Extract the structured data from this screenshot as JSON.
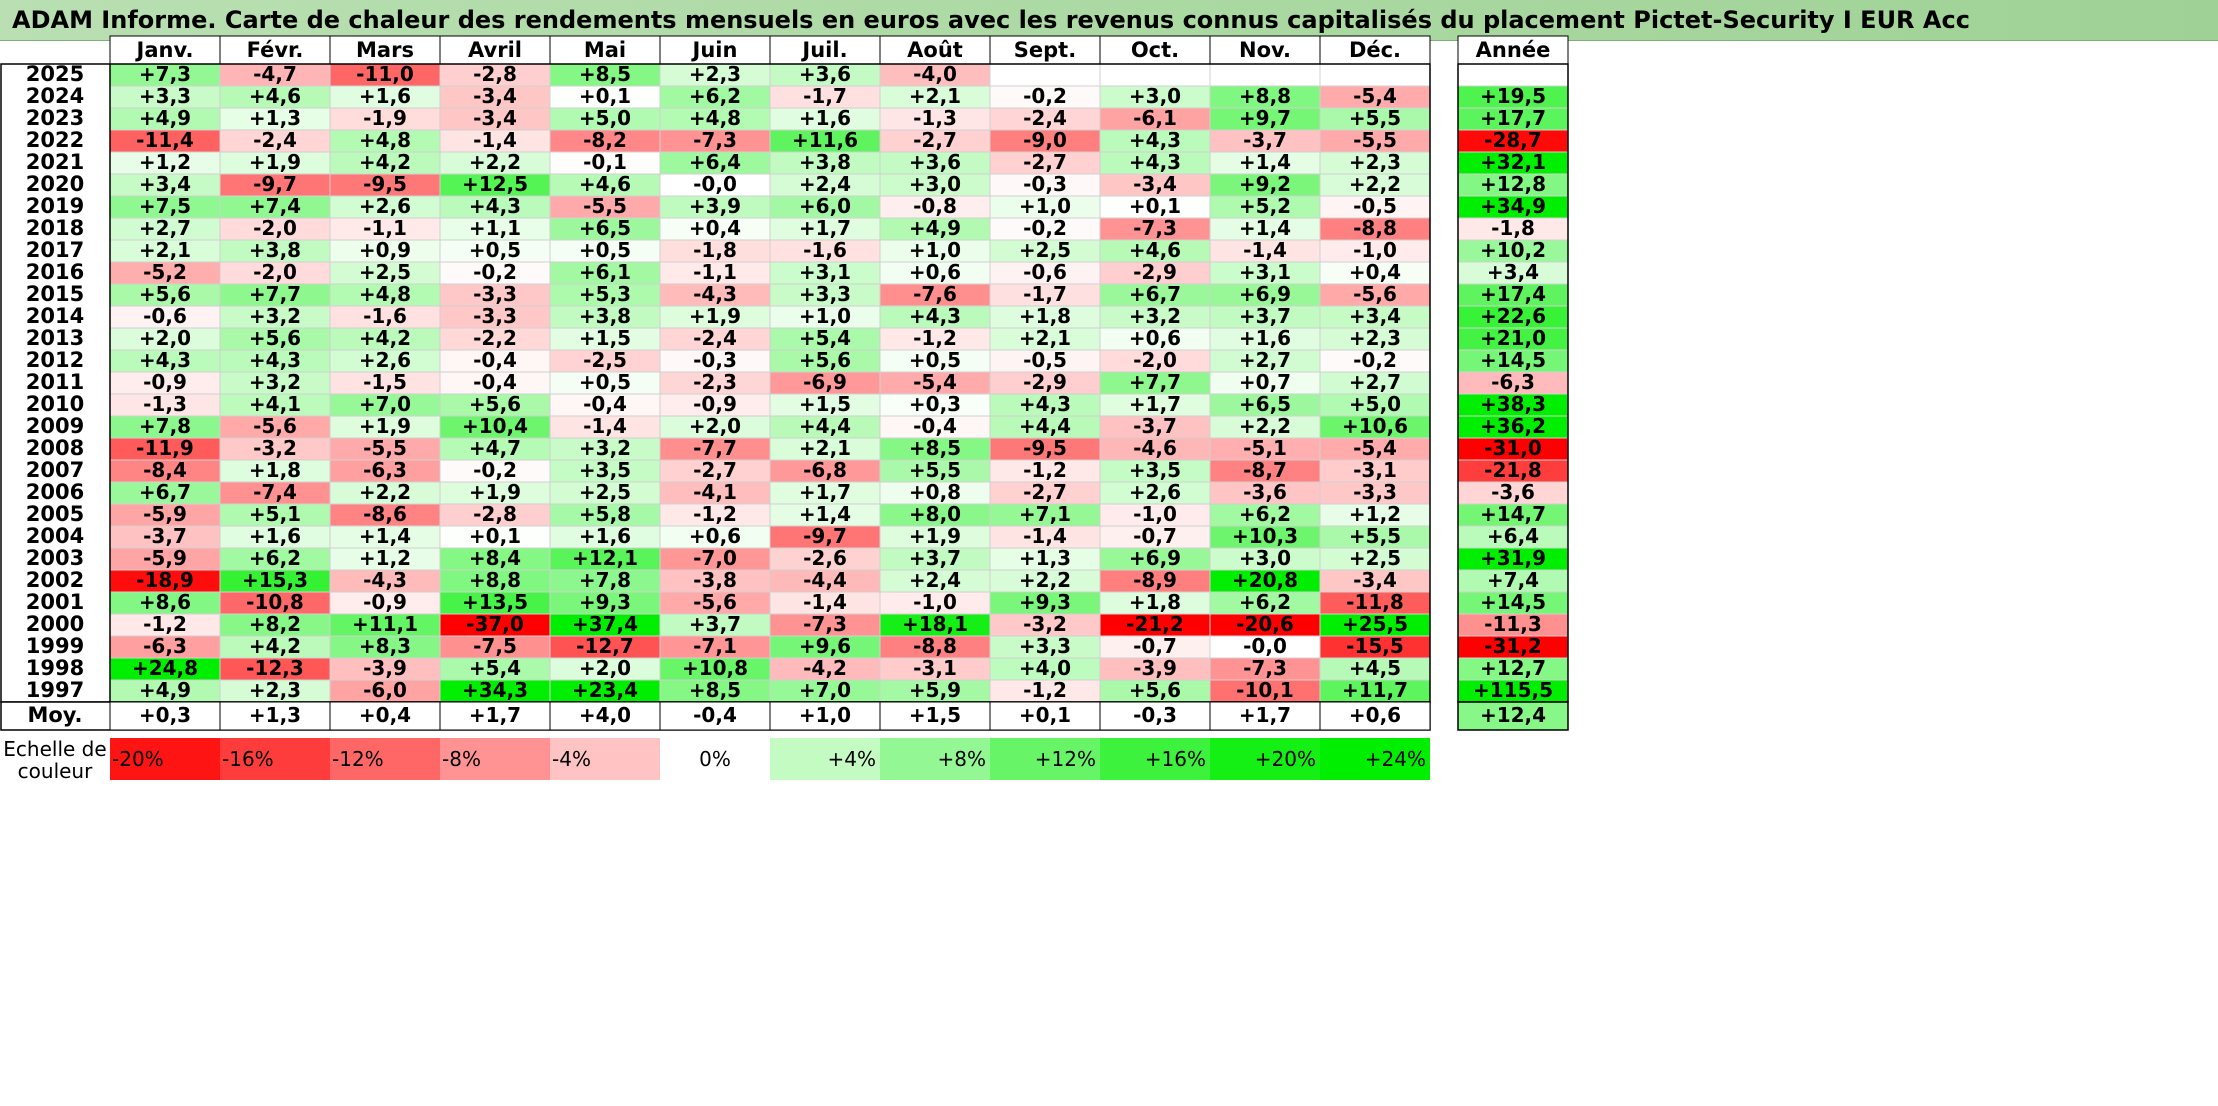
{
  "title": "ADAM Informe. Carte de chaleur des rendements mensuels en euros avec les revenus connus capitalisés du placement Pictet-Security I EUR Acc",
  "colors": {
    "neg_max": "#ff0000",
    "zero": "#ffffff",
    "pos_max": "#00ee00"
  },
  "chart_data": {
    "type": "heatmap",
    "title": "ADAM Informe. Carte de chaleur des rendements mensuels en euros avec les revenus connus capitalisés du placement Pictet-Security I EUR Acc",
    "columns": [
      "Janv.",
      "Févr.",
      "Mars",
      "Avril",
      "Mai",
      "Juin",
      "Juil.",
      "Août",
      "Sept.",
      "Oct.",
      "Nov.",
      "Déc."
    ],
    "annual_header": "Année",
    "rows": [
      {
        "year": "2025",
        "values": [
          "+7,3",
          "-4,7",
          "-11,0",
          "-2,8",
          "+8,5",
          "+2,3",
          "+3,6",
          "-4,0",
          "",
          "",
          "",
          ""
        ],
        "annual": ""
      },
      {
        "year": "2024",
        "values": [
          "+3,3",
          "+4,6",
          "+1,6",
          "-3,4",
          "+0,1",
          "+6,2",
          "-1,7",
          "+2,1",
          "-0,2",
          "+3,0",
          "+8,8",
          "-5,4"
        ],
        "annual": "+19,5"
      },
      {
        "year": "2023",
        "values": [
          "+4,9",
          "+1,3",
          "-1,9",
          "-3,4",
          "+5,0",
          "+4,8",
          "+1,6",
          "-1,3",
          "-2,4",
          "-6,1",
          "+9,7",
          "+5,5"
        ],
        "annual": "+17,7"
      },
      {
        "year": "2022",
        "values": [
          "-11,4",
          "-2,4",
          "+4,8",
          "-1,4",
          "-8,2",
          "-7,3",
          "+11,6",
          "-2,7",
          "-9,0",
          "+4,3",
          "-3,7",
          "-5,5"
        ],
        "annual": "-28,7"
      },
      {
        "year": "2021",
        "values": [
          "+1,2",
          "+1,9",
          "+4,2",
          "+2,2",
          "-0,1",
          "+6,4",
          "+3,8",
          "+3,6",
          "-2,7",
          "+4,3",
          "+1,4",
          "+2,3"
        ],
        "annual": "+32,1"
      },
      {
        "year": "2020",
        "values": [
          "+3,4",
          "-9,7",
          "-9,5",
          "+12,5",
          "+4,6",
          "-0,0",
          "+2,4",
          "+3,0",
          "-0,3",
          "-3,4",
          "+9,2",
          "+2,2"
        ],
        "annual": "+12,8"
      },
      {
        "year": "2019",
        "values": [
          "+7,5",
          "+7,4",
          "+2,6",
          "+4,3",
          "-5,5",
          "+3,9",
          "+6,0",
          "-0,8",
          "+1,0",
          "+0,1",
          "+5,2",
          "-0,5"
        ],
        "annual": "+34,9"
      },
      {
        "year": "2018",
        "values": [
          "+2,7",
          "-2,0",
          "-1,1",
          "+1,1",
          "+6,5",
          "+0,4",
          "+1,7",
          "+4,9",
          "-0,2",
          "-7,3",
          "+1,4",
          "-8,8"
        ],
        "annual": "-1,8"
      },
      {
        "year": "2017",
        "values": [
          "+2,1",
          "+3,8",
          "+0,9",
          "+0,5",
          "+0,5",
          "-1,8",
          "-1,6",
          "+1,0",
          "+2,5",
          "+4,6",
          "-1,4",
          "-1,0"
        ],
        "annual": "+10,2"
      },
      {
        "year": "2016",
        "values": [
          "-5,2",
          "-2,0",
          "+2,5",
          "-0,2",
          "+6,1",
          "-1,1",
          "+3,1",
          "+0,6",
          "-0,6",
          "-2,9",
          "+3,1",
          "+0,4"
        ],
        "annual": "+3,4"
      },
      {
        "year": "2015",
        "values": [
          "+5,6",
          "+7,7",
          "+4,8",
          "-3,3",
          "+5,3",
          "-4,3",
          "+3,3",
          "-7,6",
          "-1,7",
          "+6,7",
          "+6,9",
          "-5,6"
        ],
        "annual": "+17,4"
      },
      {
        "year": "2014",
        "values": [
          "-0,6",
          "+3,2",
          "-1,6",
          "-3,3",
          "+3,8",
          "+1,9",
          "+1,0",
          "+4,3",
          "+1,8",
          "+3,2",
          "+3,7",
          "+3,4"
        ],
        "annual": "+22,6"
      },
      {
        "year": "2013",
        "values": [
          "+2,0",
          "+5,6",
          "+4,2",
          "-2,2",
          "+1,5",
          "-2,4",
          "+5,4",
          "-1,2",
          "+2,1",
          "+0,6",
          "+1,6",
          "+2,3"
        ],
        "annual": "+21,0"
      },
      {
        "year": "2012",
        "values": [
          "+4,3",
          "+4,3",
          "+2,6",
          "-0,4",
          "-2,5",
          "-0,3",
          "+5,6",
          "+0,5",
          "-0,5",
          "-2,0",
          "+2,7",
          "-0,2"
        ],
        "annual": "+14,5"
      },
      {
        "year": "2011",
        "values": [
          "-0,9",
          "+3,2",
          "-1,5",
          "-0,4",
          "+0,5",
          "-2,3",
          "-6,9",
          "-5,4",
          "-2,9",
          "+7,7",
          "+0,7",
          "+2,7"
        ],
        "annual": "-6,3"
      },
      {
        "year": "2010",
        "values": [
          "-1,3",
          "+4,1",
          "+7,0",
          "+5,6",
          "-0,4",
          "-0,9",
          "+1,5",
          "+0,3",
          "+4,3",
          "+1,7",
          "+6,5",
          "+5,0"
        ],
        "annual": "+38,3"
      },
      {
        "year": "2009",
        "values": [
          "+7,8",
          "-5,6",
          "+1,9",
          "+10,4",
          "-1,4",
          "+2,0",
          "+4,4",
          "-0,4",
          "+4,4",
          "-3,7",
          "+2,2",
          "+10,6"
        ],
        "annual": "+36,2"
      },
      {
        "year": "2008",
        "values": [
          "-11,9",
          "-3,2",
          "-5,5",
          "+4,7",
          "+3,2",
          "-7,7",
          "+2,1",
          "+8,5",
          "-9,5",
          "-4,6",
          "-5,1",
          "-5,4"
        ],
        "annual": "-31,0"
      },
      {
        "year": "2007",
        "values": [
          "-8,4",
          "+1,8",
          "-6,3",
          "-0,2",
          "+3,5",
          "-2,7",
          "-6,8",
          "+5,5",
          "-1,2",
          "+3,5",
          "-8,7",
          "-3,1"
        ],
        "annual": "-21,8"
      },
      {
        "year": "2006",
        "values": [
          "+6,7",
          "-7,4",
          "+2,2",
          "+1,9",
          "+2,5",
          "-4,1",
          "+1,7",
          "+0,8",
          "-2,7",
          "+2,6",
          "-3,6",
          "-3,3"
        ],
        "annual": "-3,6"
      },
      {
        "year": "2005",
        "values": [
          "-5,9",
          "+5,1",
          "-8,6",
          "-2,8",
          "+5,8",
          "-1,2",
          "+1,4",
          "+8,0",
          "+7,1",
          "-1,0",
          "+6,2",
          "+1,2"
        ],
        "annual": "+14,7"
      },
      {
        "year": "2004",
        "values": [
          "-3,7",
          "+1,6",
          "+1,4",
          "+0,1",
          "+1,6",
          "+0,6",
          "-9,7",
          "+1,9",
          "-1,4",
          "-0,7",
          "+10,3",
          "+5,5"
        ],
        "annual": "+6,4"
      },
      {
        "year": "2003",
        "values": [
          "-5,9",
          "+6,2",
          "+1,2",
          "+8,4",
          "+12,1",
          "-7,0",
          "-2,6",
          "+3,7",
          "+1,3",
          "+6,9",
          "+3,0",
          "+2,5"
        ],
        "annual": "+31,9"
      },
      {
        "year": "2002",
        "values": [
          "-18,9",
          "+15,3",
          "-4,3",
          "+8,8",
          "+7,8",
          "-3,8",
          "-4,4",
          "+2,4",
          "+2,2",
          "-8,9",
          "+20,8",
          "-3,4"
        ],
        "annual": "+7,4"
      },
      {
        "year": "2001",
        "values": [
          "+8,6",
          "-10,8",
          "-0,9",
          "+13,5",
          "+9,3",
          "-5,6",
          "-1,4",
          "-1,0",
          "+9,3",
          "+1,8",
          "+6,2",
          "-11,8"
        ],
        "annual": "+14,5"
      },
      {
        "year": "2000",
        "values": [
          "-1,2",
          "+8,2",
          "+11,1",
          "-37,0",
          "+37,4",
          "+3,7",
          "-7,3",
          "+18,1",
          "-3,2",
          "-21,2",
          "-20,6",
          "+25,5"
        ],
        "annual": "-11,3"
      },
      {
        "year": "1999",
        "values": [
          "-6,3",
          "+4,2",
          "+8,3",
          "-7,5",
          "-12,7",
          "-7,1",
          "+9,6",
          "-8,8",
          "+3,3",
          "-0,7",
          "-0,0",
          "-15,5"
        ],
        "annual": "-31,2"
      },
      {
        "year": "1998",
        "values": [
          "+24,8",
          "-12,3",
          "-3,9",
          "+5,4",
          "+2,0",
          "+10,8",
          "-4,2",
          "-3,1",
          "+4,0",
          "-3,9",
          "-7,3",
          "+4,5"
        ],
        "annual": "+12,7"
      },
      {
        "year": "1997",
        "values": [
          "+4,9",
          "+2,3",
          "-6,0",
          "+34,3",
          "+23,4",
          "+8,5",
          "+7,0",
          "+5,9",
          "-1,2",
          "+5,6",
          "-10,1",
          "+11,7"
        ],
        "annual": "+115,5"
      }
    ],
    "average": {
      "label": "Moy.",
      "values": [
        "+0,3",
        "+1,3",
        "+0,4",
        "+1,7",
        "+4,0",
        "-0,4",
        "+1,0",
        "+1,5",
        "+0,1",
        "-0,3",
        "+1,7",
        "+0,6"
      ],
      "annual": "+12,4"
    },
    "scale": {
      "label_line1": "Echelle de",
      "label_line2": "couleur",
      "steps": [
        "-20%",
        "-16%",
        "-12%",
        "-8%",
        "-4%",
        "0%",
        "+4%",
        "+8%",
        "+12%",
        "+16%",
        "+20%",
        "+24%"
      ],
      "step_values": [
        -20,
        -16,
        -12,
        -8,
        -4,
        0,
        4,
        8,
        12,
        16,
        20,
        24
      ]
    }
  }
}
